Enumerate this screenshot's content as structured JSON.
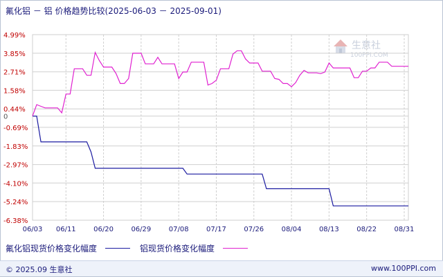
{
  "title": "氟化铝 － 铝 价格趋势比较(2025-06-03 － 2025-09-01)",
  "watermark": {
    "name": "生意社",
    "url": "100PPI.COM"
  },
  "footer": {
    "copyright": "© 2025.09 生意社",
    "site": "www.100PPI.com"
  },
  "colors": {
    "series1": "#1a1aa0",
    "series2": "#e020d0",
    "grid": "#cfcfcf",
    "text": "#1a1a7a",
    "zero_text": "#555555"
  },
  "chart_data": {
    "type": "line",
    "title": "氟化铝 － 铝 价格趋势比较(2025-06-03 － 2025-09-01)",
    "x_range": [
      "2025-06-03",
      "2025-09-01"
    ],
    "x_ticks": [
      "06/03",
      "06/11",
      "06/20",
      "06/29",
      "07/08",
      "07/17",
      "07/26",
      "08/04",
      "08/13",
      "08/22",
      "08/31"
    ],
    "y_ticks": [
      "4.99%",
      "3.85%",
      "2.71%",
      "1.58%",
      "0.44%",
      "0",
      "-0.69%",
      "-1.83%",
      "-2.97%",
      "-4.10%",
      "-5.24%",
      "-6.38%"
    ],
    "y_tick_values": [
      4.99,
      3.85,
      2.71,
      1.58,
      0.44,
      0,
      -0.69,
      -1.83,
      -2.97,
      -4.1,
      -5.24,
      -6.38
    ],
    "ylim": [
      -6.38,
      4.99
    ],
    "grid": true,
    "legend_position": "bottom-left",
    "series": [
      {
        "name": "氟化铝现货价格变化幅度",
        "points": [
          [
            "2025-06-03",
            0
          ],
          [
            "2025-06-04",
            0
          ],
          [
            "2025-06-05",
            -1.58
          ],
          [
            "2025-06-16",
            -1.58
          ],
          [
            "2025-06-17",
            -2.2
          ],
          [
            "2025-06-18",
            -3.2
          ],
          [
            "2025-07-09",
            -3.2
          ],
          [
            "2025-07-10",
            -3.55
          ],
          [
            "2025-07-28",
            -3.55
          ],
          [
            "2025-07-29",
            -4.45
          ],
          [
            "2025-08-13",
            -4.45
          ],
          [
            "2025-08-14",
            -5.5
          ],
          [
            "2025-09-01",
            -5.5
          ]
        ]
      },
      {
        "name": "铝现货价格变化幅度",
        "points": [
          [
            "2025-06-03",
            0
          ],
          [
            "2025-06-04",
            0.7
          ],
          [
            "2025-06-05",
            0.6
          ],
          [
            "2025-06-06",
            0.5
          ],
          [
            "2025-06-07",
            0.5
          ],
          [
            "2025-06-08",
            0.5
          ],
          [
            "2025-06-09",
            0.5
          ],
          [
            "2025-06-10",
            0.2
          ],
          [
            "2025-06-11",
            1.35
          ],
          [
            "2025-06-12",
            1.35
          ],
          [
            "2025-06-13",
            2.9
          ],
          [
            "2025-06-14",
            2.9
          ],
          [
            "2025-06-15",
            2.9
          ],
          [
            "2025-06-16",
            2.5
          ],
          [
            "2025-06-17",
            2.5
          ],
          [
            "2025-06-18",
            3.9
          ],
          [
            "2025-06-19",
            3.4
          ],
          [
            "2025-06-20",
            3.0
          ],
          [
            "2025-06-21",
            3.0
          ],
          [
            "2025-06-22",
            3.0
          ],
          [
            "2025-06-23",
            2.6
          ],
          [
            "2025-06-24",
            2.0
          ],
          [
            "2025-06-25",
            2.0
          ],
          [
            "2025-06-26",
            2.3
          ],
          [
            "2025-06-27",
            3.85
          ],
          [
            "2025-06-28",
            3.85
          ],
          [
            "2025-06-29",
            3.85
          ],
          [
            "2025-06-30",
            3.2
          ],
          [
            "2025-07-01",
            3.2
          ],
          [
            "2025-07-02",
            3.2
          ],
          [
            "2025-07-03",
            3.6
          ],
          [
            "2025-07-04",
            3.2
          ],
          [
            "2025-07-05",
            3.2
          ],
          [
            "2025-07-06",
            3.2
          ],
          [
            "2025-07-07",
            3.2
          ],
          [
            "2025-07-08",
            2.3
          ],
          [
            "2025-07-09",
            2.7
          ],
          [
            "2025-07-10",
            2.7
          ],
          [
            "2025-07-11",
            3.3
          ],
          [
            "2025-07-12",
            3.3
          ],
          [
            "2025-07-13",
            3.3
          ],
          [
            "2025-07-14",
            3.3
          ],
          [
            "2025-07-15",
            1.9
          ],
          [
            "2025-07-16",
            2.0
          ],
          [
            "2025-07-17",
            2.2
          ],
          [
            "2025-07-18",
            2.9
          ],
          [
            "2025-07-19",
            2.9
          ],
          [
            "2025-07-20",
            2.9
          ],
          [
            "2025-07-21",
            3.8
          ],
          [
            "2025-07-22",
            4.0
          ],
          [
            "2025-07-23",
            4.0
          ],
          [
            "2025-07-24",
            3.5
          ],
          [
            "2025-07-25",
            3.25
          ],
          [
            "2025-07-26",
            3.25
          ],
          [
            "2025-07-27",
            3.25
          ],
          [
            "2025-07-28",
            2.75
          ],
          [
            "2025-07-29",
            2.75
          ],
          [
            "2025-07-30",
            2.75
          ],
          [
            "2025-07-31",
            2.3
          ],
          [
            "2025-08-01",
            2.25
          ],
          [
            "2025-08-02",
            2.0
          ],
          [
            "2025-08-03",
            2.0
          ],
          [
            "2025-08-04",
            1.8
          ],
          [
            "2025-08-05",
            2.05
          ],
          [
            "2025-08-06",
            2.5
          ],
          [
            "2025-08-07",
            2.8
          ],
          [
            "2025-08-08",
            2.65
          ],
          [
            "2025-08-09",
            2.65
          ],
          [
            "2025-08-10",
            2.65
          ],
          [
            "2025-08-11",
            2.6
          ],
          [
            "2025-08-12",
            2.7
          ],
          [
            "2025-08-13",
            3.25
          ],
          [
            "2025-08-14",
            2.95
          ],
          [
            "2025-08-15",
            2.95
          ],
          [
            "2025-08-16",
            2.95
          ],
          [
            "2025-08-17",
            2.95
          ],
          [
            "2025-08-18",
            2.95
          ],
          [
            "2025-08-19",
            2.35
          ],
          [
            "2025-08-20",
            2.35
          ],
          [
            "2025-08-21",
            2.75
          ],
          [
            "2025-08-22",
            2.75
          ],
          [
            "2025-08-23",
            2.95
          ],
          [
            "2025-08-24",
            2.95
          ],
          [
            "2025-08-25",
            3.3
          ],
          [
            "2025-08-26",
            3.3
          ],
          [
            "2025-08-27",
            3.3
          ],
          [
            "2025-08-28",
            3.05
          ],
          [
            "2025-08-29",
            3.05
          ],
          [
            "2025-08-30",
            3.05
          ],
          [
            "2025-08-31",
            3.05
          ],
          [
            "2025-09-01",
            3.05
          ]
        ]
      }
    ]
  }
}
